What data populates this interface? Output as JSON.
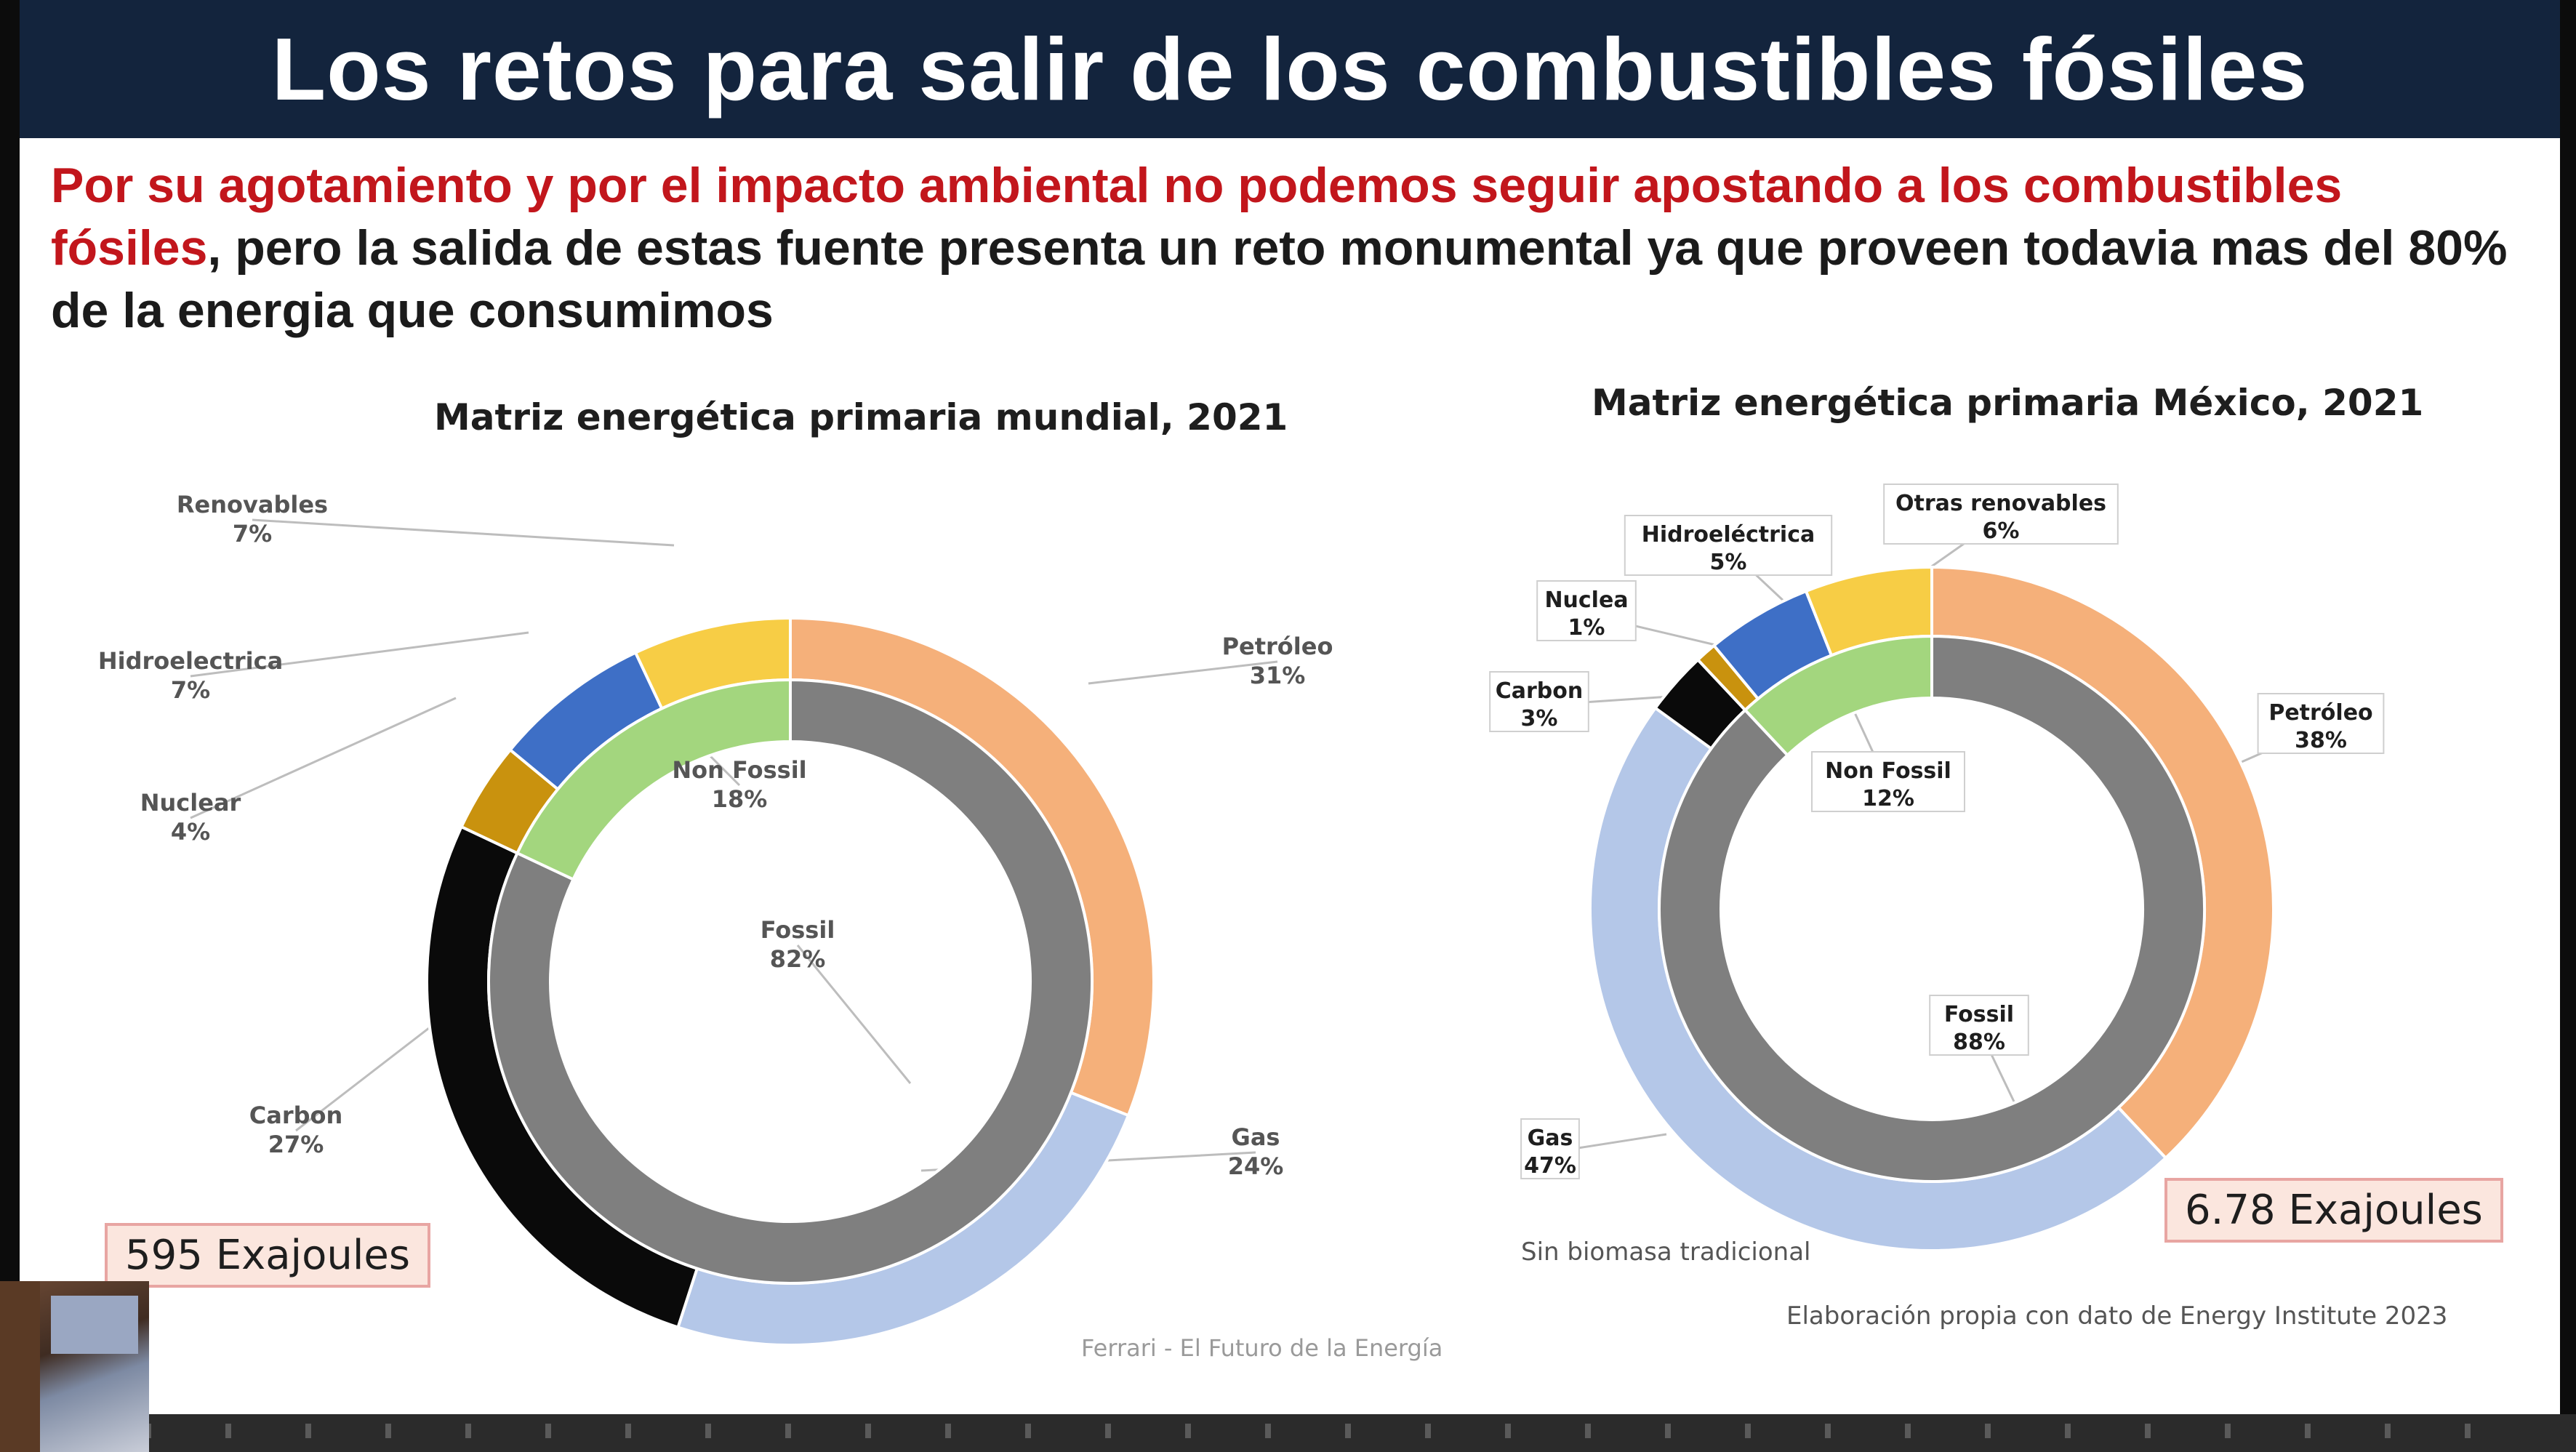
{
  "slide": {
    "title": "Los retos para salir de los combustibles fósiles",
    "intro_red": "Por su agotamiento y por el impacto ambiental no podemos seguir apostando a los combustibles fósiles",
    "intro_black": ", pero la salida de estas fuente presenta un reto monumental ya que proveen todavia mas del 80% de la energia que consumimos",
    "footer_center": "Ferrari - El Futuro de la Energía"
  },
  "colors": {
    "petroleo": "#f5b07a",
    "gas": "#b4c7e8",
    "carbon": "#0a0a0a",
    "nuclear": "#c9920e",
    "hidro": "#3e6fc6",
    "renovables": "#f7cd45",
    "fossil": "#7f7f7f",
    "non_fossil": "#a3d67e",
    "title_bar": "#13243d",
    "intro_red": "#c2161c"
  },
  "chart_data": [
    {
      "type": "pie",
      "title": "Matriz energética primaria mundial, 2021",
      "total_label": "595 Exajoules",
      "outer": [
        {
          "label": "Petróleo",
          "value": 31,
          "value_label": "31%"
        },
        {
          "label": "Gas",
          "value": 24,
          "value_label": "24%"
        },
        {
          "label": "Carbon",
          "value": 27,
          "value_label": "27%"
        },
        {
          "label": "Nuclear",
          "value": 4,
          "value_label": "4%"
        },
        {
          "label": "Hidroelectrica",
          "value": 7,
          "value_label": "7%"
        },
        {
          "label": "Renovables",
          "value": 7,
          "value_label": "7%"
        }
      ],
      "inner": [
        {
          "label": "Fossil",
          "value": 82,
          "value_label": "82%"
        },
        {
          "label": "Non Fossil",
          "value": 18,
          "value_label": "18%"
        }
      ]
    },
    {
      "type": "pie",
      "title": "Matriz energética primaria México, 2021",
      "total_label": "6.78 Exajoules",
      "note": "Sin biomasa tradicional",
      "source": "Elaboración propia con dato de Energy Institute 2023",
      "outer": [
        {
          "label": "Petróleo",
          "value": 38,
          "value_label": "38%"
        },
        {
          "label": "Gas",
          "value": 47,
          "value_label": "47%"
        },
        {
          "label": "Carbon",
          "value": 3,
          "value_label": "3%"
        },
        {
          "label": "Nuclea",
          "value": 1,
          "value_label": "1%"
        },
        {
          "label": "Hidroeléctrica",
          "value": 5,
          "value_label": "5%"
        },
        {
          "label": "Otras renovables",
          "value": 6,
          "value_label": "6%"
        }
      ],
      "inner": [
        {
          "label": "Fossil",
          "value": 88,
          "value_label": "88%"
        },
        {
          "label": "Non Fossil",
          "value": 12,
          "value_label": "12%"
        }
      ]
    }
  ]
}
